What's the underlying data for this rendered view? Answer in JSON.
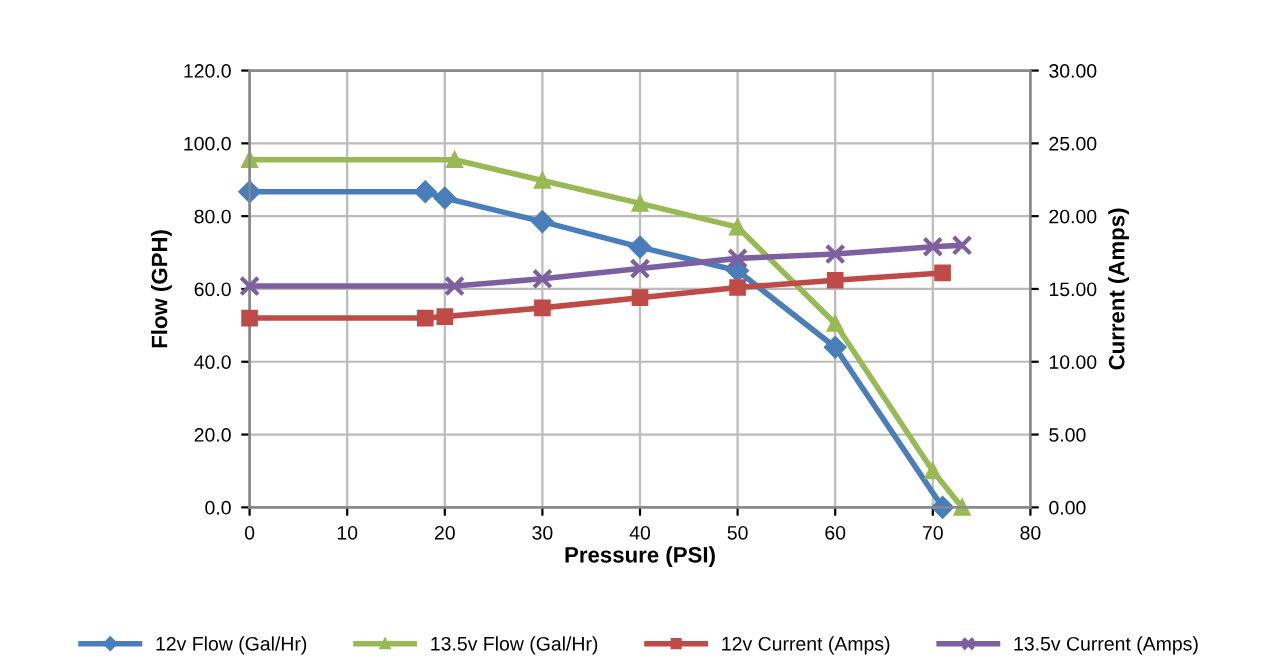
{
  "chart_data": {
    "type": "line",
    "xlabel": "Pressure (PSI)",
    "ylabel": "Flow (GPH)",
    "y2label": "Current (Amps)",
    "xlim": [
      0,
      80
    ],
    "xticks": [
      0,
      10,
      20,
      30,
      40,
      50,
      60,
      70,
      80
    ],
    "ylim": [
      0,
      120
    ],
    "yticks": [
      {
        "value": 0,
        "label": "0.0"
      },
      {
        "value": 20,
        "label": "20.0"
      },
      {
        "value": 40,
        "label": "40.0"
      },
      {
        "value": 60,
        "label": "60.0"
      },
      {
        "value": 80,
        "label": "80.0"
      },
      {
        "value": 100,
        "label": "100.0"
      },
      {
        "value": 120,
        "label": "120.0"
      }
    ],
    "y2lim": [
      0,
      30
    ],
    "y2ticks": [
      {
        "value": 0,
        "label": "0.00"
      },
      {
        "value": 5,
        "label": "5.00"
      },
      {
        "value": 10,
        "label": "10.00"
      },
      {
        "value": 15,
        "label": "15.00"
      },
      {
        "value": 20,
        "label": "20.00"
      },
      {
        "value": 25,
        "label": "25.00"
      },
      {
        "value": 30,
        "label": "30.00"
      }
    ],
    "grid": true,
    "legend": "bottom",
    "series": [
      {
        "name": "12v Flow (Gal/Hr)",
        "color": "#4a7ebb",
        "marker": "diamond",
        "x": [
          0,
          18,
          20,
          30,
          40,
          50,
          60,
          71
        ],
        "values": [
          86.7,
          86.7,
          85,
          78.5,
          71.5,
          65,
          44,
          0
        ]
      },
      {
        "name": "13.5v Flow (Gal/Hr)",
        "color": "#98b954",
        "marker": "triangle",
        "x": [
          0,
          21,
          30,
          40,
          50,
          60,
          70,
          73
        ],
        "values": [
          95.5,
          95.5,
          89.8,
          83.5,
          77,
          50.5,
          10,
          0
        ]
      },
      {
        "name": "12v Current (Amps)",
        "color": "#be4b48",
        "marker": "square",
        "axis": "y2",
        "x": [
          0,
          18,
          20,
          30,
          40,
          50,
          60,
          71
        ],
        "values": [
          13,
          13,
          13.1,
          13.7,
          14.4,
          15.1,
          15.6,
          16.1
        ]
      },
      {
        "name": "13.5v Current (Amps)",
        "color": "#7d60a0",
        "marker": "cross",
        "axis": "y2",
        "x": [
          0,
          21,
          30,
          40,
          50,
          60,
          70,
          73
        ],
        "values": [
          15.2,
          15.2,
          15.7,
          16.4,
          17.1,
          17.4,
          17.9,
          18.0
        ]
      }
    ]
  }
}
